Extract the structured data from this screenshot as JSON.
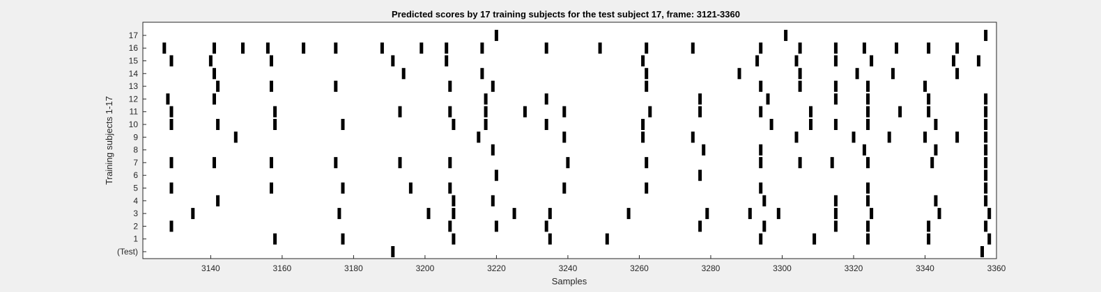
{
  "chart_data": {
    "type": "scatter",
    "title": "Predicted scores by 17 training subjects for the test subject 17, frame: 3121-3360",
    "xlabel": "Samples",
    "ylabel": "Training subjects 1-17",
    "xlim": [
      3121,
      3360
    ],
    "xticks": [
      3140,
      3160,
      3180,
      3200,
      3220,
      3240,
      3260,
      3280,
      3300,
      3320,
      3340,
      3360
    ],
    "y_categories": [
      "(Test)",
      "1",
      "2",
      "3",
      "4",
      "5",
      "6",
      "7",
      "8",
      "9",
      "10",
      "11",
      "12",
      "13",
      "14",
      "15",
      "16",
      "17"
    ],
    "grid": false,
    "legend": "none",
    "marker": "vertical bar",
    "marker_color": "#000000",
    "background": "#ffffff",
    "rows": [
      {
        "label": "(Test)",
        "x": [
          3191,
          3356
        ]
      },
      {
        "label": "1",
        "x": [
          3158,
          3177,
          3208,
          3235,
          3251,
          3294,
          3309,
          3324,
          3341,
          3358
        ]
      },
      {
        "label": "2",
        "x": [
          3129,
          3207,
          3220,
          3234,
          3277,
          3295,
          3315,
          3324,
          3341,
          3357
        ]
      },
      {
        "label": "3",
        "x": [
          3135,
          3176,
          3201,
          3208,
          3225,
          3235,
          3257,
          3279,
          3291,
          3299,
          3315,
          3325,
          3344,
          3358
        ]
      },
      {
        "label": "4",
        "x": [
          3142,
          3208,
          3219,
          3295,
          3315,
          3324,
          3343,
          3357
        ]
      },
      {
        "label": "5",
        "x": [
          3129,
          3157,
          3177,
          3196,
          3207,
          3239,
          3262,
          3294,
          3324,
          3357
        ]
      },
      {
        "label": "6",
        "x": [
          3220,
          3277,
          3357
        ]
      },
      {
        "label": "7",
        "x": [
          3129,
          3141,
          3157,
          3175,
          3193,
          3207,
          3240,
          3262,
          3294,
          3305,
          3314,
          3324,
          3342,
          3357
        ]
      },
      {
        "label": "8",
        "x": [
          3219,
          3278,
          3294,
          3323,
          3343,
          3357
        ]
      },
      {
        "label": "9",
        "x": [
          3147,
          3215,
          3239,
          3261,
          3275,
          3304,
          3320,
          3330,
          3340,
          3349,
          3357
        ]
      },
      {
        "label": "10",
        "x": [
          3129,
          3142,
          3158,
          3177,
          3208,
          3217,
          3234,
          3261,
          3297,
          3308,
          3315,
          3324,
          3343,
          3357
        ]
      },
      {
        "label": "11",
        "x": [
          3129,
          3158,
          3193,
          3207,
          3217,
          3228,
          3239,
          3263,
          3277,
          3294,
          3308,
          3324,
          3333,
          3341,
          3357
        ]
      },
      {
        "label": "12",
        "x": [
          3128,
          3141,
          3217,
          3234,
          3277,
          3296,
          3315,
          3324,
          3341,
          3357
        ]
      },
      {
        "label": "13",
        "x": [
          3142,
          3157,
          3175,
          3207,
          3219,
          3262,
          3294,
          3305,
          3315,
          3324,
          3340
        ]
      },
      {
        "label": "14",
        "x": [
          3141,
          3194,
          3216,
          3262,
          3288,
          3305,
          3321,
          3331,
          3349
        ]
      },
      {
        "label": "15",
        "x": [
          3129,
          3140,
          3157,
          3191,
          3206,
          3261,
          3293,
          3304,
          3315,
          3325,
          3348,
          3355
        ]
      },
      {
        "label": "16",
        "x": [
          3127,
          3141,
          3149,
          3156,
          3166,
          3175,
          3188,
          3199,
          3206,
          3216,
          3234,
          3249,
          3262,
          3275,
          3294,
          3305,
          3315,
          3323,
          3332,
          3341,
          3349
        ]
      },
      {
        "label": "17",
        "x": [
          3220,
          3301,
          3357
        ]
      }
    ]
  }
}
